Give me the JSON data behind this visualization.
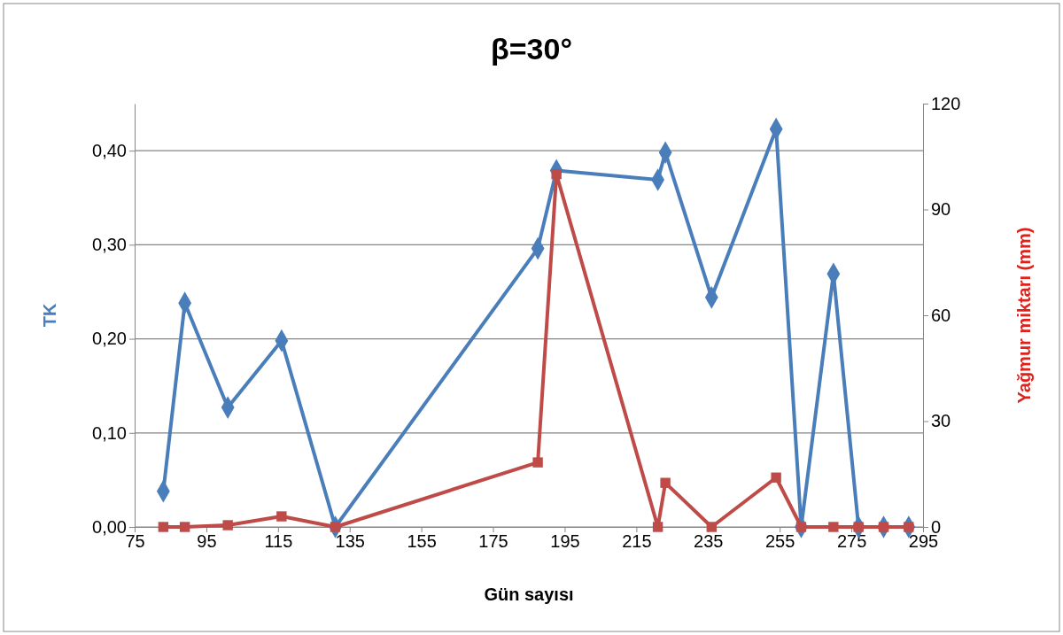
{
  "chart_data": {
    "type": "line",
    "title": "β=30°",
    "xlabel": "Gün sayısı",
    "ylabel": "TK",
    "y2label": "Yağmur miktarı (mm)",
    "xlim": [
      75,
      295
    ],
    "xticks": [
      75,
      95,
      115,
      135,
      155,
      175,
      195,
      215,
      235,
      255,
      275,
      295
    ],
    "ylim": [
      0,
      0.45
    ],
    "yticks": [
      {
        "value": 0,
        "label": "0,00"
      },
      {
        "value": 0.1,
        "label": "0,10"
      },
      {
        "value": 0.2,
        "label": "0,20"
      },
      {
        "value": 0.3,
        "label": "0,30"
      },
      {
        "value": 0.4,
        "label": "0,40"
      }
    ],
    "y2lim": [
      0,
      120
    ],
    "y2ticks": [
      0,
      30,
      60,
      90,
      120
    ],
    "grid": "y",
    "line_style": "solid",
    "series": [
      {
        "color": "#4a7ebb",
        "marker": "diamond",
        "x": [
          83,
          89,
          101,
          116,
          131,
          187.5,
          192.7,
          221,
          223.1,
          236,
          254,
          261,
          270,
          277,
          284,
          291
        ],
        "values": [
          0.038,
          0.238,
          0.127,
          0.198,
          0,
          0.296,
          0.379,
          0.369,
          0.398,
          0.244,
          0.423,
          0,
          0.269,
          0,
          0,
          0
        ]
      },
      {
        "color": "#be4b48",
        "marker": "square",
        "axis": "y2",
        "x": [
          83,
          89,
          101,
          116,
          131,
          187.5,
          192.7,
          221,
          223.1,
          236,
          254,
          261,
          270,
          277,
          284,
          291
        ],
        "values": [
          0,
          0,
          0.5,
          3,
          0,
          18.3,
          100,
          0,
          12.5,
          0,
          14,
          0,
          0,
          0,
          0,
          0
        ]
      }
    ]
  }
}
